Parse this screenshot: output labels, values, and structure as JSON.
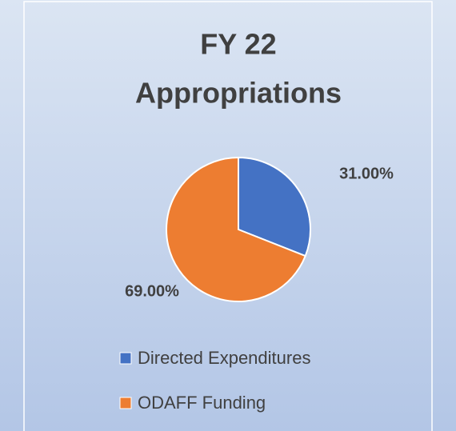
{
  "chart_data": {
    "type": "pie",
    "title": [
      "FY 22",
      "Appropriations"
    ],
    "categories": [
      "Directed Expenditures",
      "ODAFF Funding"
    ],
    "values": [
      31,
      69
    ],
    "value_labels": [
      "31.00%",
      "69.00%"
    ],
    "colors": [
      "#4472c4",
      "#ed7d31"
    ],
    "legend": "bottom"
  }
}
